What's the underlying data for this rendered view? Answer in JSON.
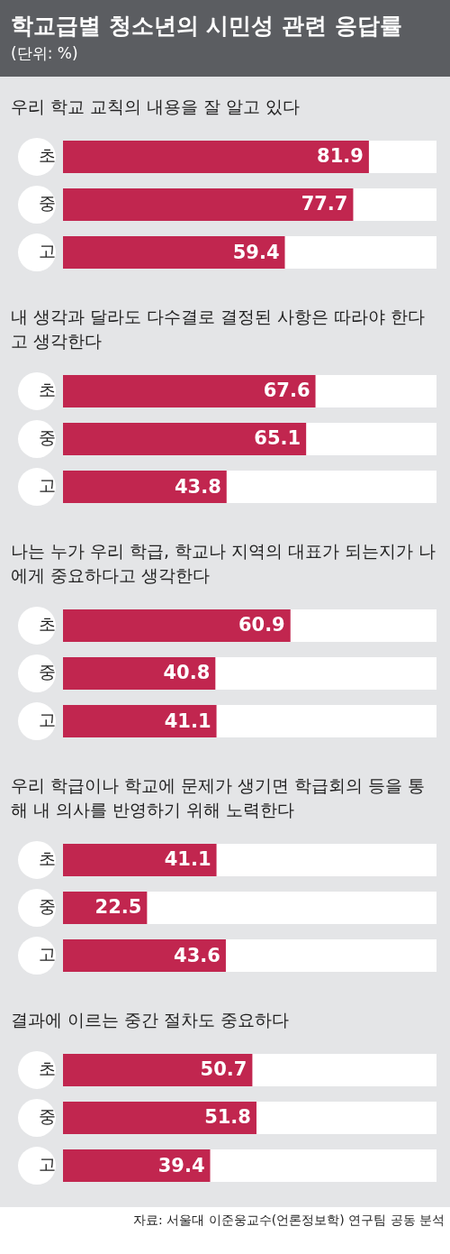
{
  "chart_data": [
    {
      "type": "other",
      "title": "학교급별 청소년의 시민성 관련 응답률",
      "subtitle": "(단위: %)"
    },
    {
      "type": "bar",
      "orientation": "horizontal",
      "title": "우리 학교 교칙의 내용을 잘 알고 있다",
      "categories": [
        "초",
        "중",
        "고"
      ],
      "values": [
        81.9,
        77.7,
        59.4
      ],
      "color": "#c1264f",
      "xlim": [
        0,
        100
      ],
      "data_labels": true
    },
    {
      "type": "bar",
      "orientation": "horizontal",
      "title": "내 생각과 달라도 다수결로 결정된 사항은 따라야 한다고 생각한다",
      "categories": [
        "초",
        "중",
        "고"
      ],
      "values": [
        67.6,
        65.1,
        43.8
      ],
      "color": "#c1264f",
      "xlim": [
        0,
        100
      ],
      "data_labels": true
    },
    {
      "type": "bar",
      "orientation": "horizontal",
      "title": "나는 누가 우리 학급, 학교나 지역의 대표가 되는지가 나에게 중요하다고 생각한다",
      "categories": [
        "초",
        "중",
        "고"
      ],
      "values": [
        60.9,
        40.8,
        41.1
      ],
      "color": "#c1264f",
      "xlim": [
        0,
        100
      ],
      "data_labels": true
    },
    {
      "type": "bar",
      "orientation": "horizontal",
      "title": "우리 학급이나 학교에 문제가 생기면 학급회의 등을 통해 내 의사를 반영하기 위해 노력한다",
      "categories": [
        "초",
        "중",
        "고"
      ],
      "values": [
        41.1,
        22.5,
        43.6
      ],
      "color": "#c1264f",
      "xlim": [
        0,
        100
      ],
      "data_labels": true
    },
    {
      "type": "bar",
      "orientation": "horizontal",
      "title": "결과에 이르는 중간 절차도 중요하다",
      "categories": [
        "초",
        "중",
        "고"
      ],
      "values": [
        50.7,
        51.8,
        39.4
      ],
      "color": "#c1264f",
      "xlim": [
        0,
        100
      ],
      "data_labels": true,
      "annotations": [
        "자료: 서울대 이준웅교수(언론정보학) 연구팀 공동 분석"
      ]
    }
  ]
}
